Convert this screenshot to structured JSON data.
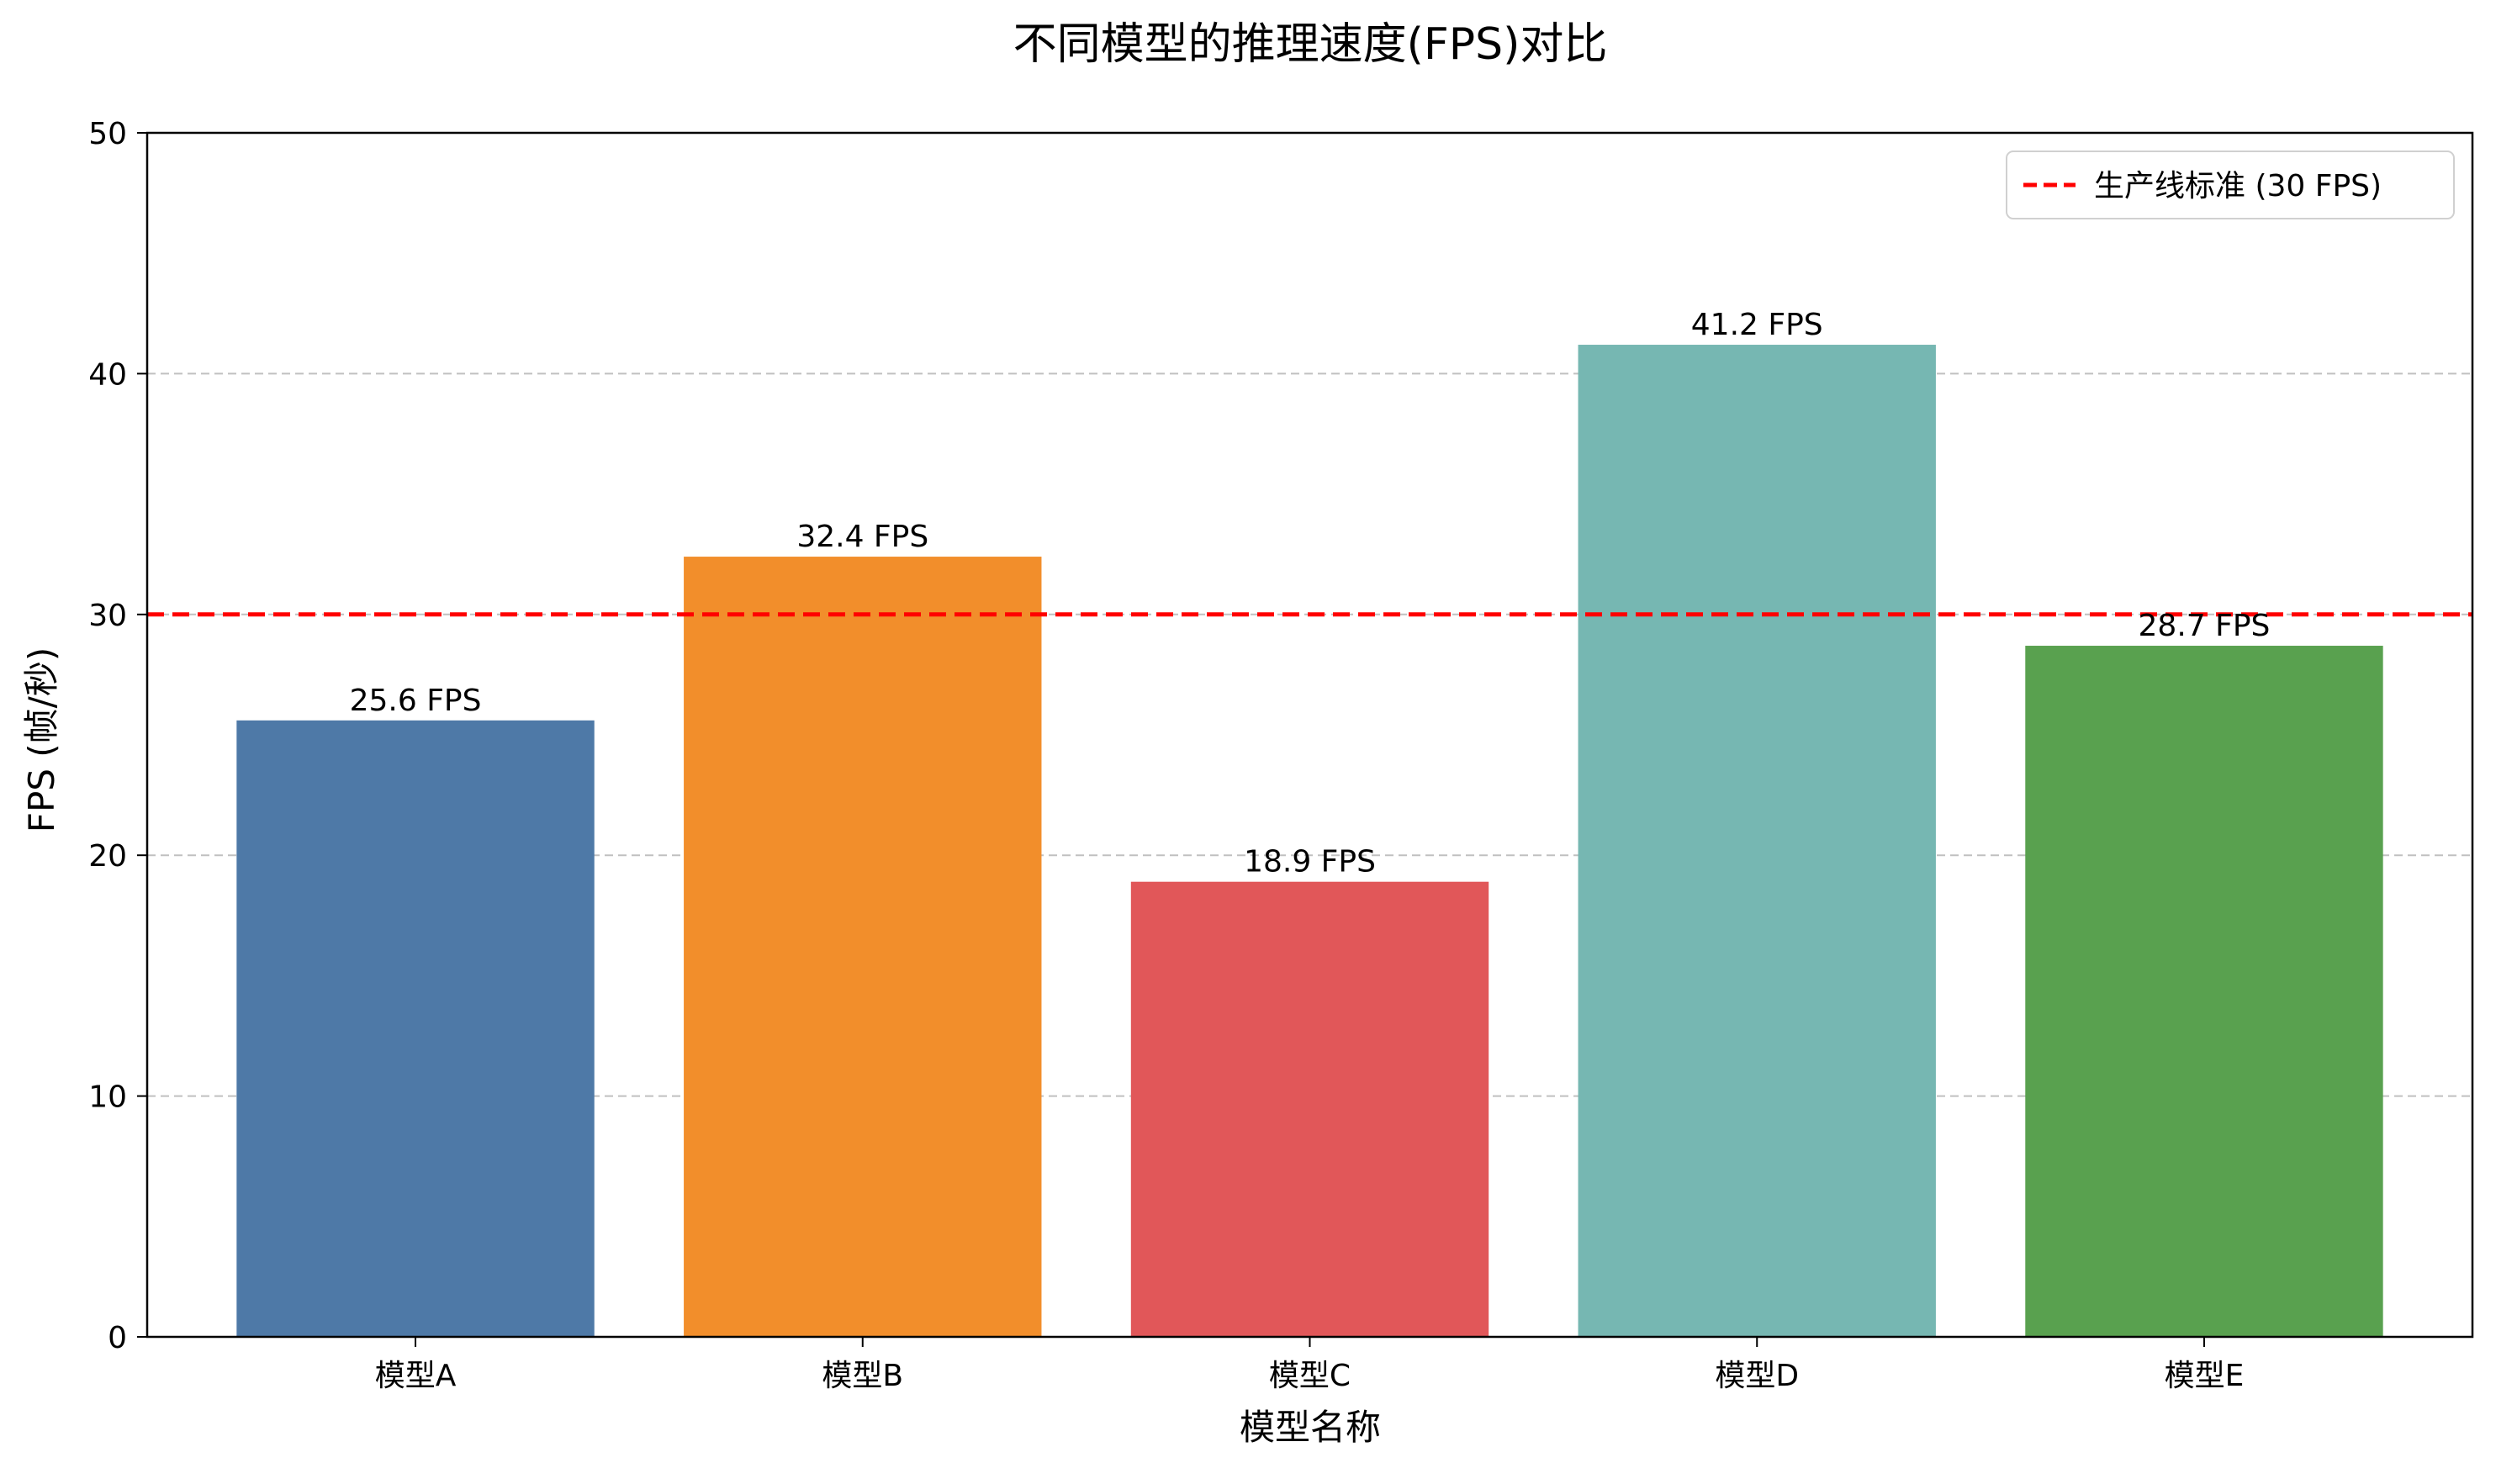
{
  "chart_data": {
    "type": "bar",
    "title": "不同模型的推理速度(FPS)对比",
    "xlabel": "模型名称",
    "ylabel": "FPS (帧/秒)",
    "categories": [
      "模型A",
      "模型B",
      "模型C",
      "模型D",
      "模型E"
    ],
    "values": [
      25.6,
      32.4,
      18.9,
      41.2,
      28.7
    ],
    "data_labels": [
      "25.6 FPS",
      "32.4 FPS",
      "18.9 FPS",
      "41.2 FPS",
      "28.7 FPS"
    ],
    "colors": [
      "#4e79a7",
      "#f28e2b",
      "#e15759",
      "#76b7b2",
      "#59a14f"
    ],
    "ylim": [
      0,
      50
    ],
    "yticks": [
      0,
      10,
      20,
      30,
      40,
      50
    ],
    "ytick_labels": [
      "0",
      "10",
      "20",
      "30",
      "40",
      "50"
    ],
    "grid": {
      "y": true,
      "x": false,
      "style": "dashed",
      "color": "#c0c0c0"
    },
    "reference_line": {
      "value": 30,
      "label": "生产线标准 (30 FPS)",
      "color": "#ff0000",
      "style": "dashed"
    },
    "legend": {
      "placement": "top-right"
    }
  }
}
